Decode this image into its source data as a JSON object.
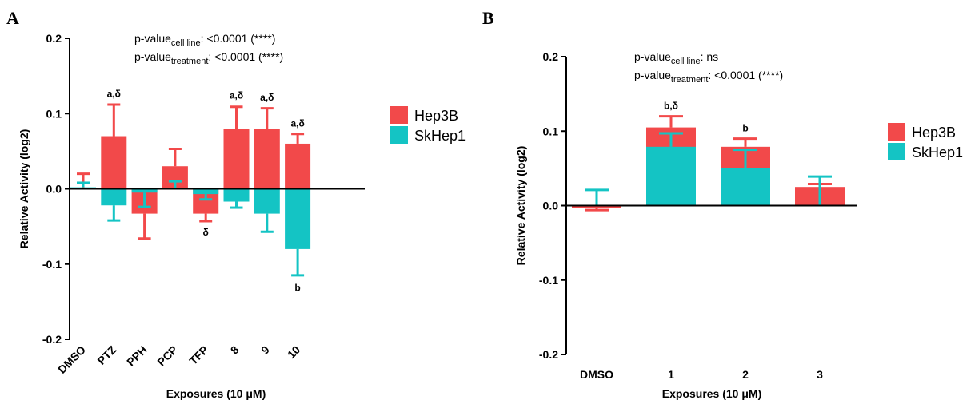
{
  "colors": {
    "hep3b": "#F2494A",
    "skhep1": "#14C4C4"
  },
  "chart_data": [
    {
      "panel": "A",
      "type": "bar",
      "xlabel": "Exposures (10 μM)",
      "ylabel": "Relative Activity (log2)",
      "ylim": [
        -0.2,
        0.2
      ],
      "yticks": [
        "0.2",
        "0.1",
        "0.0",
        "-0.1",
        "-0.2"
      ],
      "categories": [
        "DMSO",
        "PTZ",
        "PPH",
        "PCP",
        "TFP",
        "8",
        "9",
        "10"
      ],
      "series": [
        {
          "name": "Hep3B",
          "values": [
            0.0,
            0.07,
            -0.033,
            0.03,
            -0.033,
            0.08,
            0.08,
            0.06
          ],
          "errors": [
            0.02,
            0.042,
            0.033,
            0.023,
            0.01,
            0.029,
            0.027,
            0.013
          ]
        },
        {
          "name": "SkHep1",
          "values": [
            0.002,
            -0.022,
            -0.005,
            0.0,
            -0.007,
            -0.017,
            -0.033,
            -0.08
          ],
          "errors": [
            0.006,
            0.02,
            0.019,
            0.01,
            0.007,
            0.008,
            0.024,
            0.035
          ]
        }
      ],
      "significance": [
        {
          "category": "PTZ",
          "label": "a,δ",
          "value": 0.122
        },
        {
          "category": "TFP",
          "label": "δ",
          "value": -0.062
        },
        {
          "category": "8",
          "label": "a,δ",
          "value": 0.12
        },
        {
          "category": "9",
          "label": "a,δ",
          "value": 0.117
        },
        {
          "category": "10",
          "label": "a,δ",
          "value": 0.083
        },
        {
          "category": "10",
          "label": "b",
          "value": -0.136
        }
      ],
      "annotations": {
        "line1_prefix": "p-value",
        "line1_sub": "cell line",
        "line1_value": ": <0.0001 (****)",
        "line2_prefix": "p-value",
        "line2_sub": "treatment",
        "line2_value": ": <0.0001 (****)"
      },
      "legend": [
        "Hep3B",
        "SkHep1"
      ],
      "legend_position": "right"
    },
    {
      "panel": "B",
      "type": "bar",
      "xlabel": "Exposures (10 μM)",
      "ylabel": "Relative Activity (log2)",
      "ylim": [
        -0.2,
        0.2
      ],
      "yticks": [
        "0.2",
        "0.1",
        "0.0",
        "-0.1",
        "-0.2"
      ],
      "categories": [
        "DMSO",
        "1",
        "2",
        "3"
      ],
      "series": [
        {
          "name": "Hep3B",
          "values": [
            -0.003,
            0.105,
            0.079,
            0.025
          ],
          "errors": [
            0.003,
            0.015,
            0.011,
            0.004
          ]
        },
        {
          "name": "SkHep1",
          "values": [
            0.001,
            0.079,
            0.05,
            0.0
          ],
          "errors": [
            0.02,
            0.018,
            0.025,
            0.039
          ]
        }
      ],
      "significance": [
        {
          "category": "1",
          "label": "b,δ",
          "value": 0.13
        },
        {
          "category": "2",
          "label": "b",
          "value": 0.1
        }
      ],
      "annotations": {
        "line1_prefix": "p-value",
        "line1_sub": "cell line",
        "line1_value": ": ns",
        "line2_prefix": "p-value",
        "line2_sub": "treatment",
        "line2_value": ": <0.0001 (****)"
      },
      "legend": [
        "Hep3B",
        "SkHep1"
      ],
      "legend_position": "right"
    }
  ]
}
